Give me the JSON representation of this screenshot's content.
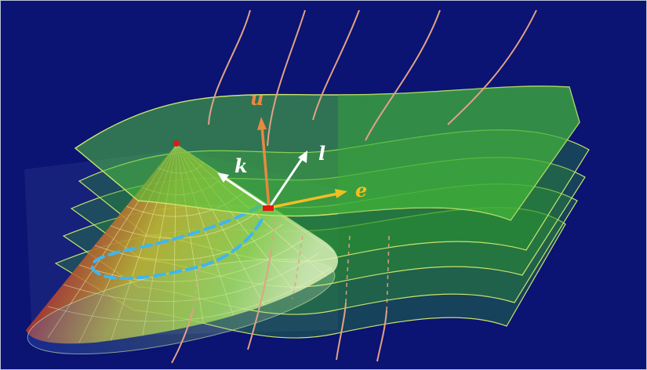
{
  "labels": {
    "u": "u",
    "k": "k",
    "l": "l",
    "e": "e"
  },
  "colors": {
    "background": "#0b1373",
    "hypersurface": "#4fc33a",
    "hypersurface_edge": "#c9e36a",
    "worldline": "#e3a184",
    "u_vector": "#e8893f",
    "e_vector": "#f0c020",
    "null_vectors": "#ffffff",
    "light_cone": "#e6e05a",
    "closed_curve": "#3fb6f0",
    "event_point": "#e01818"
  }
}
